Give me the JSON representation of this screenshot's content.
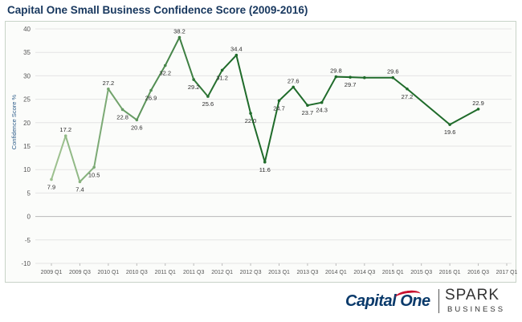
{
  "title": "Capital One Small Business Confidence Score (2009-2016)",
  "chart_data": {
    "type": "line",
    "title": "Capital One Small Business Confidence Score (2009-2016)",
    "ylabel": "Confidence Score %",
    "xlabel": "",
    "ylim": [
      -10,
      40
    ],
    "yticks": [
      -10,
      -5,
      0,
      5,
      10,
      15,
      20,
      25,
      30,
      35,
      40
    ],
    "grid": true,
    "legend": "none",
    "x_tick_labels": [
      "2009 Q1",
      "2009 Q3",
      "2010 Q1",
      "2010 Q3",
      "2011 Q1",
      "2011 Q3",
      "2012 Q1",
      "2012 Q3",
      "2013 Q1",
      "2013 Q3",
      "2014 Q1",
      "2014 Q3",
      "2015 Q1",
      "2015 Q3",
      "2016 Q1",
      "2016 Q3",
      "2017 Q1"
    ],
    "series": [
      {
        "x": [
          "2009 Q1",
          "2009 Q2",
          "2009 Q3",
          "2009 Q4",
          "2010 Q1",
          "2010 Q2",
          "2010 Q3",
          "2010 Q4",
          "2011 Q1",
          "2011 Q2",
          "2011 Q3",
          "2011 Q4",
          "2012 Q1",
          "2012 Q2",
          "2012 Q3",
          "2012 Q4",
          "2013 Q1",
          "2013 Q2",
          "2013 Q3",
          "2013 Q4",
          "2014 Q1",
          "2014 Q2",
          "2014 Q3",
          "2015 Q1",
          "2015 Q2",
          "2016 Q1",
          "2016 Q3"
        ],
        "values": [
          7.9,
          17.2,
          7.4,
          10.5,
          27.2,
          22.8,
          20.6,
          26.9,
          32.2,
          38.2,
          29.2,
          25.6,
          31.2,
          34.4,
          22.0,
          11.6,
          24.7,
          27.6,
          23.7,
          24.3,
          29.8,
          29.7,
          29.6,
          29.6,
          27.2,
          19.6,
          22.9
        ],
        "labels": [
          "7.9",
          "17.2",
          "7.4",
          "10.5",
          "27.2",
          "22.8",
          "20.6",
          "26.9",
          "32.2",
          "38.2",
          "29.2",
          "25.6",
          "31.2",
          "34.4",
          "22.0",
          "11.6",
          "24.7",
          "27.6",
          "23.7",
          "24.3",
          "29.8",
          "29.7",
          "",
          "29.6",
          "27.2",
          "19.6",
          "22.9"
        ],
        "x_positions": [
          0,
          1,
          2,
          3,
          4,
          5,
          6,
          7,
          8,
          9,
          10,
          11,
          12,
          13,
          14,
          15,
          16,
          17,
          18,
          19,
          20,
          21,
          22,
          24,
          25,
          28,
          30
        ],
        "colors": {
          "start": "#9cc08e",
          "end": "#1f6b2a"
        }
      }
    ]
  },
  "logos": {
    "capital_one": "Capital One",
    "spark": "SPARK",
    "business": "BUSINESS"
  }
}
